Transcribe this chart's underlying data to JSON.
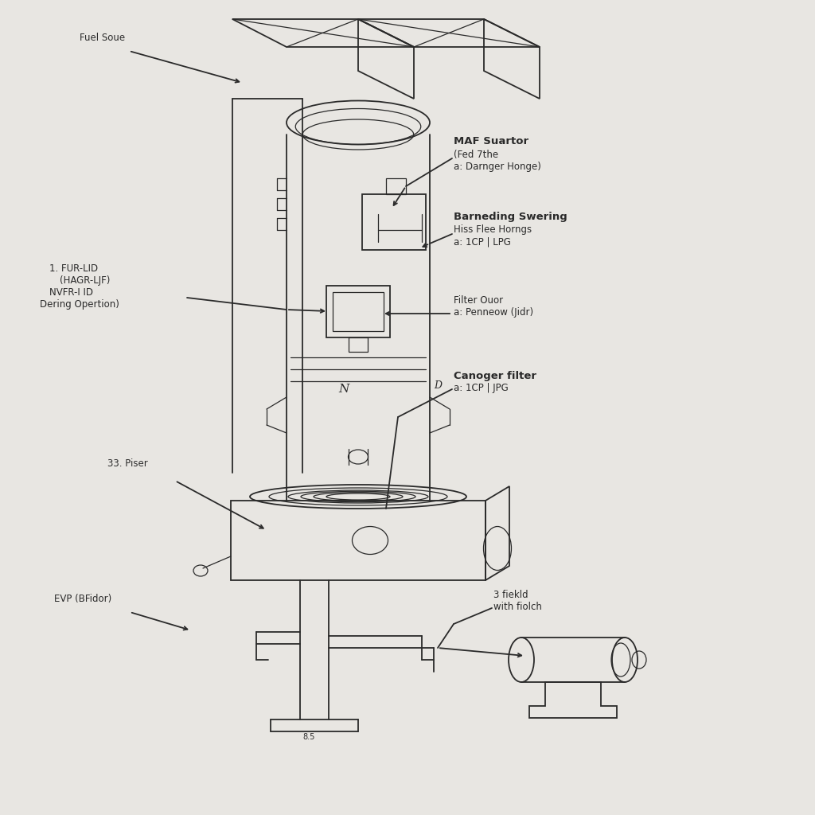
{
  "bg_color": "#e8e6e2",
  "line_color": "#2a2a2a",
  "labels": {
    "fuel_source": "Fuel Soue",
    "maf_line1": "MAF Suartor",
    "maf_line2": "(Fed 7the",
    "maf_line3": "a: Darnger Honge)",
    "barn_line1": "Barneding Swering",
    "barn_line2": "Hiss Flee Horngs",
    "barn_line3": "a: 1CP | LPG",
    "filter_line1": "Filter Ouor",
    "filter_line2": "a: Penneow (Jidr)",
    "canoger_line1": "Canoger filter",
    "canoger_line2": "a: 1CP | JPG",
    "fur_line1": "1. FUR-LID",
    "fur_line2": "(HAGR-LJF)",
    "fur_line3": "NVFR-I ID",
    "fur_line4": "Dering Opertion)",
    "piser": "33. Piser",
    "evp": "EVP (BFidor)",
    "field_line1": "3 fiekld",
    "field_line2": "with fiolch"
  },
  "font_size": 8.5,
  "font_size_bold": 9.5
}
